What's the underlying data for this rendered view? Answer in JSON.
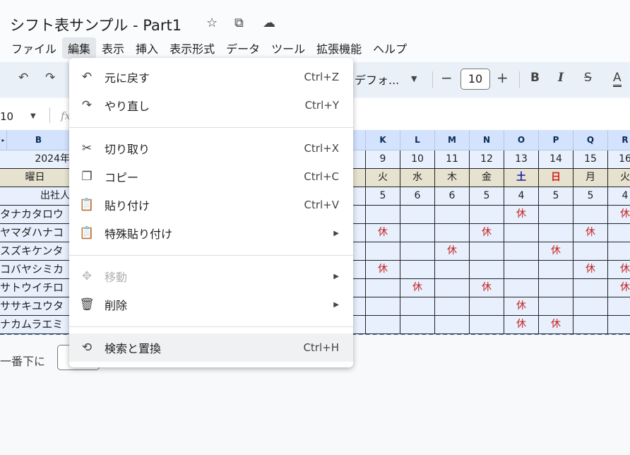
{
  "title": "シフト表サンプル - Part1",
  "title_icons": [
    "star-icon",
    "move-to-folder-icon",
    "cloud-saved-icon"
  ],
  "menubar": [
    "ファイル",
    "編集",
    "表示",
    "挿入",
    "表示形式",
    "データ",
    "ツール",
    "拡張機能",
    "ヘルプ"
  ],
  "toolbar": {
    "font": "デフォ...",
    "font_size": "10",
    "bold": "B",
    "italic": "I",
    "text_color": "A"
  },
  "formula_bar": {
    "name_box": "10",
    "fx": "fx"
  },
  "grid": {
    "col_b": "B",
    "b_cells": [
      "2024年",
      "曜日",
      "出社人",
      "タナカタロウ",
      "ヤマダハナコ",
      "スズキケンタ",
      "コバヤシミカ",
      "サトウイチロ",
      "ササキユウタ",
      "ナカムラエミ"
    ],
    "columns": [
      "K",
      "L",
      "M",
      "N",
      "O",
      "P",
      "Q",
      "R"
    ],
    "dates": [
      "9",
      "10",
      "11",
      "12",
      "13",
      "14",
      "15",
      "16"
    ],
    "weekdays": [
      "火",
      "水",
      "木",
      "金",
      "土",
      "日",
      "月",
      "火"
    ],
    "weekday_colors": {
      "土": "#1a1aa6",
      "日": "#d21f1f"
    },
    "counts": [
      "5",
      "6",
      "6",
      "5",
      "4",
      "5",
      "5",
      "4"
    ],
    "rest_mark": "休",
    "rest_rows": [
      [
        "O",
        "R"
      ],
      [
        "K",
        "N",
        "Q"
      ],
      [
        "M",
        "P"
      ],
      [
        "K",
        "Q",
        "R"
      ],
      [
        "L",
        "N",
        "R"
      ],
      [
        "O"
      ],
      [
        "O",
        "P"
      ]
    ],
    "rest_color": "#c5221f"
  },
  "bottom": {
    "add_rows_label": "一番下に"
  },
  "edit_menu": {
    "items": [
      {
        "icon": "undo-icon",
        "label": "元に戻す",
        "shortcut": "Ctrl+Z"
      },
      {
        "icon": "redo-icon",
        "label": "やり直し",
        "shortcut": "Ctrl+Y"
      },
      {
        "icon": "scissors-icon",
        "label": "切り取り",
        "shortcut": "Ctrl+X"
      },
      {
        "icon": "copy-icon",
        "label": "コピー",
        "shortcut": "Ctrl+C"
      },
      {
        "icon": "clipboard-icon",
        "label": "貼り付け",
        "shortcut": "Ctrl+V"
      },
      {
        "icon": "clipboard-icon",
        "label": "特殊貼り付け",
        "submenu": true
      },
      {
        "icon": "move-icon",
        "label": "移動",
        "submenu": true,
        "disabled": true
      },
      {
        "icon": "trash-icon",
        "label": "削除",
        "submenu": true
      },
      {
        "icon": "find-replace-icon",
        "label": "検索と置換",
        "shortcut": "Ctrl+H",
        "highlighted": true
      }
    ]
  }
}
